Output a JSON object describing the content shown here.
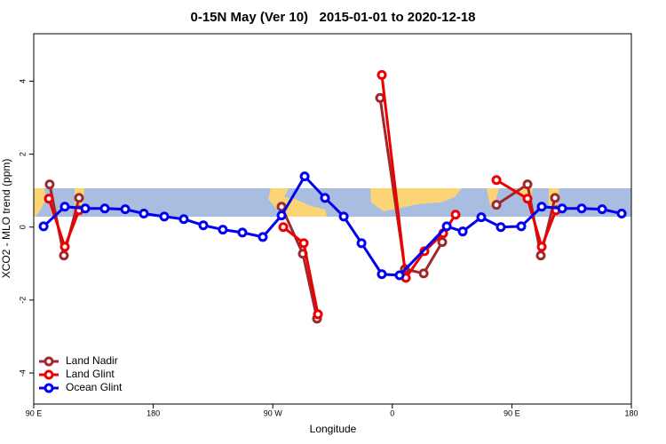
{
  "chart_data": {
    "type": "line",
    "title": "0-15N May (Ver 10)   2015-01-01 to 2020-12-18",
    "xlabel": "Longitude",
    "ylabel": "XCO2 - MLO trend (ppm)",
    "xlim": [
      90,
      540
    ],
    "ylim": [
      -4.85,
      5.3
    ],
    "xticks": [
      {
        "value": 90,
        "label": "90 E"
      },
      {
        "value": 180,
        "label": "180"
      },
      {
        "value": 270,
        "label": "90 W"
      },
      {
        "value": 360,
        "label": "0"
      },
      {
        "value": 450,
        "label": "90 E"
      },
      {
        "value": 540,
        "label": "180"
      }
    ],
    "yticks": [
      -4,
      -2,
      0,
      2,
      4
    ],
    "legend": "lower left",
    "series": [
      {
        "name": "Land Nadir",
        "color": "#a0282c",
        "x": [
          102,
          112.7,
          124.1,
          null,
          276.6,
          292.6,
          303.3,
          null,
          350.8,
          369.5,
          383.6,
          397.6,
          null,
          438.4,
          461.8,
          471.8,
          482.5
        ],
        "values": [
          1.17,
          -0.78,
          0.8,
          null,
          0.56,
          -0.73,
          -2.51,
          null,
          3.54,
          -1.15,
          -1.27,
          -0.41,
          null,
          0.61,
          1.17,
          -0.78,
          0.8
        ]
      },
      {
        "name": "Land Glint",
        "color": "#ee0000",
        "x": [
          101.4,
          113.4,
          124.1,
          null,
          277.9,
          293.3,
          304,
          null,
          352.1,
          370.2,
          384.2,
          398.3,
          407.6,
          null,
          438.4,
          461.8,
          472.5,
          483.2
        ],
        "values": [
          0.78,
          -0.54,
          0.46,
          null,
          0,
          -0.44,
          -2.39,
          null,
          4.17,
          -1.39,
          -0.66,
          -0.17,
          0.34,
          null,
          1.29,
          0.78,
          -0.54,
          0.46
        ]
      },
      {
        "name": "Ocean Glint",
        "color": "#0000ee",
        "x": [
          97.4,
          113.4,
          128.8,
          143.5,
          158.9,
          172.9,
          188.3,
          203,
          217.7,
          232.4,
          247.1,
          262.5,
          276.6,
          294,
          309.3,
          323.4,
          336.8,
          352.1,
          365.5,
          401,
          413,
          427,
          441.7,
          457.1,
          472.5,
          487.9,
          502.6,
          518,
          532.7
        ],
        "values": [
          0.02,
          0.56,
          0.51,
          0.51,
          0.49,
          0.37,
          0.29,
          0.22,
          0.05,
          -0.07,
          -0.15,
          -0.27,
          0.32,
          1.39,
          0.8,
          0.29,
          -0.44,
          -1.29,
          -1.32,
          0.02,
          -0.12,
          0.27,
          0,
          0.02,
          0.56,
          0.51,
          0.51,
          0.49,
          0.37
        ]
      }
    ]
  }
}
